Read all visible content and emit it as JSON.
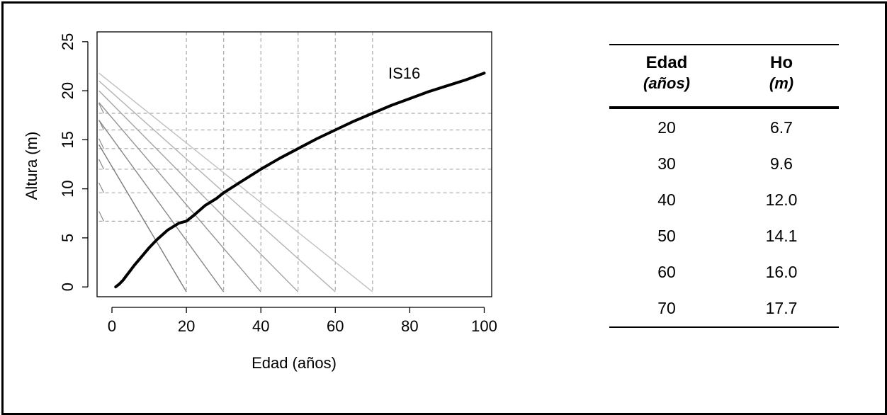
{
  "chart_data": {
    "type": "line",
    "xlabel": "Edad (años)",
    "ylabel": "Altura (m)",
    "xlim": [
      -4,
      102
    ],
    "ylim": [
      -1,
      26
    ],
    "x_ticks": [
      0,
      20,
      40,
      60,
      80,
      100
    ],
    "y_ticks": [
      0,
      5,
      10,
      15,
      20,
      25
    ],
    "curve_label": "IS16",
    "series": [
      {
        "label": "IS16",
        "color": "#000000",
        "x": [
          1,
          2,
          3,
          4,
          5,
          6,
          8,
          10,
          12,
          15,
          18,
          20,
          22,
          25,
          28,
          30,
          35,
          40,
          45,
          50,
          55,
          60,
          65,
          70,
          75,
          80,
          85,
          90,
          95,
          100
        ],
        "y": [
          0.0,
          0.3,
          0.7,
          1.2,
          1.7,
          2.2,
          3.1,
          4.0,
          4.8,
          5.8,
          6.5,
          6.7,
          7.3,
          8.3,
          9.0,
          9.6,
          10.8,
          12.0,
          13.1,
          14.1,
          15.1,
          16.0,
          16.9,
          17.7,
          18.5,
          19.2,
          19.9,
          20.5,
          21.1,
          21.8
        ]
      }
    ],
    "reference_ages": [
      20,
      30,
      40,
      50,
      60,
      70
    ],
    "reference_heights": [
      6.7,
      9.6,
      12.0,
      14.1,
      16.0,
      17.7
    ],
    "guide_line_starts": [
      {
        "x_end": 20,
        "y_start": 14.5,
        "color": "#7a7a7a"
      },
      {
        "x_end": 30,
        "y_start": 17.0,
        "color": "#888888"
      },
      {
        "x_end": 40,
        "y_start": 18.8,
        "color": "#969696"
      },
      {
        "x_end": 50,
        "y_start": 20.0,
        "color": "#a4a4a4"
      },
      {
        "x_end": 60,
        "y_start": 21.0,
        "color": "#b2b2b2"
      },
      {
        "x_end": 70,
        "y_start": 21.8,
        "color": "#c0c0c0"
      }
    ],
    "grid_color": "#aaaaaa",
    "curve_color": "#000000"
  },
  "table": {
    "headers": [
      {
        "title": "Edad",
        "unit": "(años)"
      },
      {
        "title": "Ho",
        "unit": "(m)"
      }
    ],
    "rows": [
      [
        "20",
        "6.7"
      ],
      [
        "30",
        "9.6"
      ],
      [
        "40",
        "12.0"
      ],
      [
        "50",
        "14.1"
      ],
      [
        "60",
        "16.0"
      ],
      [
        "70",
        "17.7"
      ]
    ]
  }
}
